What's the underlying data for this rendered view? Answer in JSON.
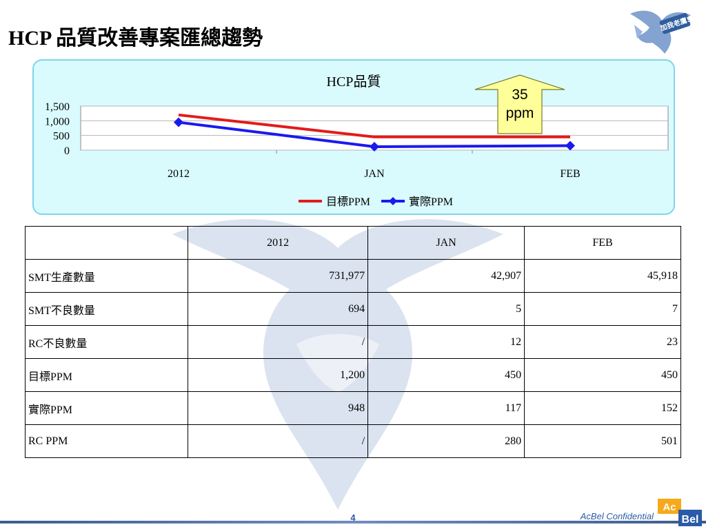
{
  "slide_title": "HCP 品質改善專案匯總趨勢",
  "logo": {
    "icon": "eagle-icon",
    "text": "加我老鷹!"
  },
  "callout": {
    "value": "35",
    "unit": "ppm",
    "color": "#ffff99",
    "icon": "up-arrow-icon"
  },
  "chart_data": {
    "type": "line",
    "title": "HCP品質",
    "categories": [
      "2012",
      "JAN",
      "FEB"
    ],
    "series": [
      {
        "name": "目標PPM",
        "values": [
          1200,
          450,
          450
        ],
        "color": "#e41a1a",
        "marker": "none"
      },
      {
        "name": "實際PPM",
        "values": [
          948,
          117,
          152
        ],
        "color": "#1a1aee",
        "marker": "diamond"
      }
    ],
    "yticks": [
      "0",
      "500",
      "1,000",
      "1,500"
    ],
    "ylim": [
      0,
      1500
    ],
    "grid": true,
    "legend": "bottom"
  },
  "table": {
    "header": [
      "",
      "2012",
      "JAN",
      "FEB"
    ],
    "rows": [
      {
        "label": "SMT生產數量",
        "values": [
          "731,977",
          "42,907",
          "45,918"
        ]
      },
      {
        "label": "SMT不良數量",
        "values": [
          "694",
          "5",
          "7"
        ]
      },
      {
        "label": "RC不良數量",
        "values": [
          "/",
          "12",
          "23"
        ]
      },
      {
        "label": "目標PPM",
        "values": [
          "1,200",
          "450",
          "450"
        ]
      },
      {
        "label": "實際PPM",
        "values": [
          "948",
          "117",
          "152"
        ]
      },
      {
        "label": "RC PPM",
        "values": [
          "/",
          "280",
          "501"
        ]
      }
    ]
  },
  "footer": {
    "page": "4",
    "confidential": "AcBel Confidential",
    "brand_ac": "Ac",
    "brand_bel": "Bel"
  }
}
